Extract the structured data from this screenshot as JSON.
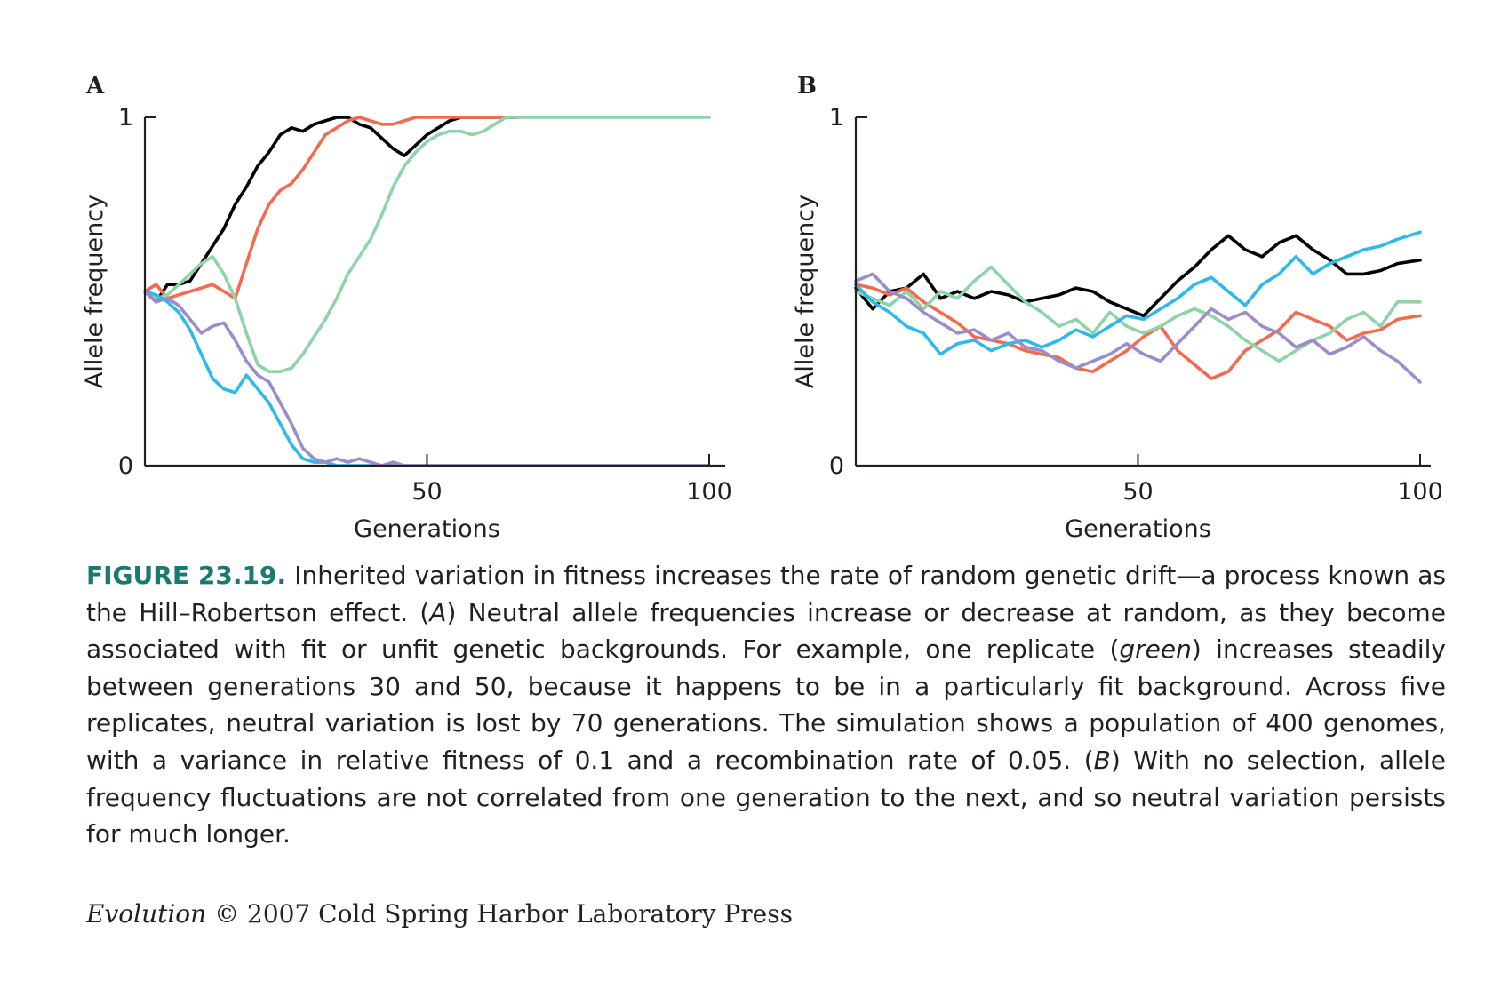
{
  "chart_data": [
    {
      "type": "line",
      "panel": "A",
      "xlabel": "Generations",
      "ylabel": "Allele frequency",
      "xlim": [
        0,
        100
      ],
      "ylim": [
        0,
        1
      ],
      "xticks": [
        50,
        100
      ],
      "yticks": [
        0,
        1
      ],
      "grid": false,
      "series": [
        {
          "color": "#000000",
          "x": [
            0,
            2,
            4,
            6,
            8,
            10,
            12,
            14,
            16,
            18,
            20,
            22,
            24,
            26,
            28,
            30,
            32,
            34,
            36,
            38,
            40,
            42,
            44,
            46,
            48,
            50,
            52,
            54,
            56,
            58,
            60,
            62,
            64,
            66
          ],
          "values": [
            0.5,
            0.47,
            0.52,
            0.52,
            0.53,
            0.58,
            0.63,
            0.68,
            0.75,
            0.8,
            0.86,
            0.9,
            0.95,
            0.97,
            0.96,
            0.98,
            0.99,
            1.0,
            1.0,
            0.98,
            0.97,
            0.94,
            0.91,
            0.89,
            0.92,
            0.95,
            0.97,
            0.99,
            1.0,
            1.0,
            1.0,
            1.0,
            1.0,
            1.0
          ]
        },
        {
          "color": "#f26b50",
          "x": [
            0,
            2,
            4,
            6,
            8,
            10,
            12,
            14,
            16,
            18,
            20,
            22,
            24,
            26,
            28,
            30,
            32,
            34,
            36,
            38,
            40,
            42,
            44,
            46,
            48,
            50,
            52,
            54,
            56,
            58,
            60,
            62,
            64,
            66
          ],
          "values": [
            0.5,
            0.52,
            0.48,
            0.49,
            0.5,
            0.51,
            0.52,
            0.5,
            0.48,
            0.58,
            0.68,
            0.75,
            0.79,
            0.81,
            0.85,
            0.9,
            0.95,
            0.97,
            0.99,
            1.0,
            0.99,
            0.98,
            0.98,
            0.99,
            1.0,
            1.0,
            1.0,
            1.0,
            1.0,
            1.0,
            1.0,
            1.0,
            1.0,
            1.0
          ]
        },
        {
          "color": "#8fd3a8",
          "x": [
            0,
            2,
            4,
            6,
            8,
            10,
            12,
            14,
            16,
            18,
            20,
            22,
            24,
            26,
            28,
            30,
            32,
            34,
            36,
            38,
            40,
            42,
            44,
            46,
            48,
            50,
            52,
            54,
            56,
            58,
            60,
            62,
            64,
            66,
            68,
            70,
            80,
            90,
            100
          ],
          "values": [
            0.5,
            0.48,
            0.49,
            0.52,
            0.55,
            0.58,
            0.6,
            0.55,
            0.48,
            0.38,
            0.29,
            0.27,
            0.27,
            0.28,
            0.32,
            0.37,
            0.42,
            0.48,
            0.55,
            0.6,
            0.65,
            0.72,
            0.8,
            0.86,
            0.9,
            0.93,
            0.95,
            0.96,
            0.96,
            0.95,
            0.96,
            0.98,
            1.0,
            1.0,
            1.0,
            1.0,
            1.0,
            1.0,
            1.0
          ]
        },
        {
          "color": "#2fb9e8",
          "x": [
            0,
            2,
            4,
            6,
            8,
            10,
            12,
            14,
            16,
            18,
            20,
            22,
            24,
            26,
            28,
            30,
            32,
            34,
            36,
            38,
            40,
            42,
            44,
            46,
            48,
            50,
            60,
            70,
            80,
            90,
            100
          ],
          "values": [
            0.5,
            0.49,
            0.47,
            0.44,
            0.39,
            0.32,
            0.25,
            0.22,
            0.21,
            0.26,
            0.22,
            0.18,
            0.12,
            0.06,
            0.02,
            0.01,
            0.01,
            0.0,
            0.0,
            0.0,
            0.0,
            0.0,
            0.0,
            0.0,
            0.0,
            0.0,
            0.0,
            0.0,
            0.0,
            0.0,
            0.0
          ]
        },
        {
          "color": "#9b8dc8",
          "x": [
            0,
            2,
            4,
            6,
            8,
            10,
            12,
            14,
            16,
            18,
            20,
            22,
            24,
            26,
            28,
            30,
            32,
            34,
            36,
            38,
            40,
            42,
            44,
            46,
            48,
            50,
            60,
            70,
            80,
            90,
            100
          ],
          "values": [
            0.5,
            0.47,
            0.48,
            0.46,
            0.42,
            0.38,
            0.4,
            0.41,
            0.36,
            0.3,
            0.26,
            0.24,
            0.18,
            0.12,
            0.05,
            0.02,
            0.01,
            0.02,
            0.01,
            0.02,
            0.01,
            0.0,
            0.01,
            0.0,
            0.0,
            0.0,
            0.0,
            0.0,
            0.0,
            0.0,
            0.0
          ]
        }
      ]
    },
    {
      "type": "line",
      "panel": "B",
      "xlabel": "Generations",
      "ylabel": "Allele frequency",
      "xlim": [
        0,
        100
      ],
      "ylim": [
        0,
        1
      ],
      "xticks": [
        50,
        100
      ],
      "yticks": [
        0,
        1
      ],
      "grid": false,
      "series": [
        {
          "color": "#000000",
          "x": [
            0,
            3,
            6,
            9,
            12,
            15,
            18,
            21,
            24,
            27,
            30,
            33,
            36,
            39,
            42,
            45,
            48,
            51,
            54,
            57,
            60,
            63,
            66,
            69,
            72,
            75,
            78,
            81,
            84,
            87,
            90,
            93,
            96,
            100
          ],
          "values": [
            0.51,
            0.45,
            0.5,
            0.51,
            0.55,
            0.48,
            0.5,
            0.48,
            0.5,
            0.49,
            0.47,
            0.48,
            0.49,
            0.51,
            0.5,
            0.47,
            0.45,
            0.43,
            0.48,
            0.53,
            0.57,
            0.62,
            0.66,
            0.62,
            0.6,
            0.64,
            0.66,
            0.62,
            0.59,
            0.55,
            0.55,
            0.56,
            0.58,
            0.59
          ]
        },
        {
          "color": "#f26b50",
          "x": [
            0,
            3,
            6,
            9,
            12,
            15,
            18,
            21,
            24,
            27,
            30,
            33,
            36,
            39,
            42,
            45,
            48,
            51,
            54,
            57,
            60,
            63,
            66,
            69,
            72,
            75,
            78,
            81,
            84,
            87,
            90,
            93,
            96,
            100
          ],
          "values": [
            0.52,
            0.51,
            0.49,
            0.51,
            0.47,
            0.44,
            0.41,
            0.37,
            0.36,
            0.35,
            0.33,
            0.32,
            0.31,
            0.28,
            0.27,
            0.3,
            0.33,
            0.37,
            0.4,
            0.33,
            0.29,
            0.25,
            0.27,
            0.33,
            0.36,
            0.39,
            0.44,
            0.42,
            0.4,
            0.36,
            0.38,
            0.39,
            0.42,
            0.43
          ]
        },
        {
          "color": "#8fd3a8",
          "x": [
            0,
            3,
            6,
            9,
            12,
            15,
            18,
            21,
            24,
            27,
            30,
            33,
            36,
            39,
            42,
            45,
            48,
            51,
            54,
            57,
            60,
            63,
            66,
            69,
            72,
            75,
            78,
            81,
            84,
            87,
            90,
            93,
            96,
            100
          ],
          "values": [
            0.5,
            0.48,
            0.46,
            0.5,
            0.45,
            0.5,
            0.48,
            0.53,
            0.57,
            0.52,
            0.47,
            0.44,
            0.4,
            0.42,
            0.38,
            0.44,
            0.4,
            0.38,
            0.4,
            0.43,
            0.45,
            0.43,
            0.4,
            0.36,
            0.33,
            0.3,
            0.33,
            0.36,
            0.38,
            0.42,
            0.44,
            0.4,
            0.47,
            0.47
          ]
        },
        {
          "color": "#2fb9e8",
          "x": [
            0,
            3,
            6,
            9,
            12,
            15,
            18,
            21,
            24,
            27,
            30,
            33,
            36,
            39,
            42,
            45,
            48,
            51,
            54,
            57,
            60,
            63,
            66,
            69,
            72,
            75,
            78,
            81,
            84,
            87,
            90,
            93,
            96,
            100
          ],
          "values": [
            0.52,
            0.47,
            0.44,
            0.4,
            0.38,
            0.32,
            0.35,
            0.36,
            0.33,
            0.35,
            0.36,
            0.34,
            0.36,
            0.39,
            0.37,
            0.4,
            0.43,
            0.42,
            0.45,
            0.48,
            0.52,
            0.54,
            0.5,
            0.46,
            0.52,
            0.55,
            0.6,
            0.55,
            0.58,
            0.6,
            0.62,
            0.63,
            0.65,
            0.67
          ]
        },
        {
          "color": "#9b8dc8",
          "x": [
            0,
            3,
            6,
            9,
            12,
            15,
            18,
            21,
            24,
            27,
            30,
            33,
            36,
            39,
            42,
            45,
            48,
            51,
            54,
            57,
            60,
            63,
            66,
            69,
            72,
            75,
            78,
            81,
            84,
            87,
            90,
            93,
            96,
            100
          ],
          "values": [
            0.53,
            0.55,
            0.5,
            0.48,
            0.44,
            0.41,
            0.38,
            0.39,
            0.36,
            0.38,
            0.34,
            0.33,
            0.3,
            0.28,
            0.3,
            0.32,
            0.35,
            0.32,
            0.3,
            0.35,
            0.4,
            0.45,
            0.42,
            0.44,
            0.4,
            0.38,
            0.34,
            0.36,
            0.32,
            0.34,
            0.37,
            0.33,
            0.3,
            0.24
          ]
        }
      ]
    }
  ],
  "caption": {
    "label": "FIGURE 23.19.",
    "text_1": " Inherited variation in fitness increases the rate of random genetic drift—a process known as the Hill–Robertson effect. (",
    "ref_a": "A",
    "text_2": ") Neutral allele frequencies increase or decrease at random, as they become associated with fit or unfit genetic backgrounds. For example, one replicate (",
    "green_word": "green",
    "text_3": ") increases steadily between generations 30 and 50, because it happens to be in a particularly fit background. Across five replicates, neutral variation is lost by 70 generations. The simulation shows a population of 400 genomes, with a variance in relative fitness of 0.1 and a recombination rate of 0.05. (",
    "ref_b": "B",
    "text_4": ") With no selection, allele frequency fluctuations are not correlated from one generation to the next, and so neutral variation persists for much longer."
  },
  "credit": {
    "book": "Evolution",
    "rest": " © 2007 Cold Spring Harbor Laboratory Press"
  }
}
